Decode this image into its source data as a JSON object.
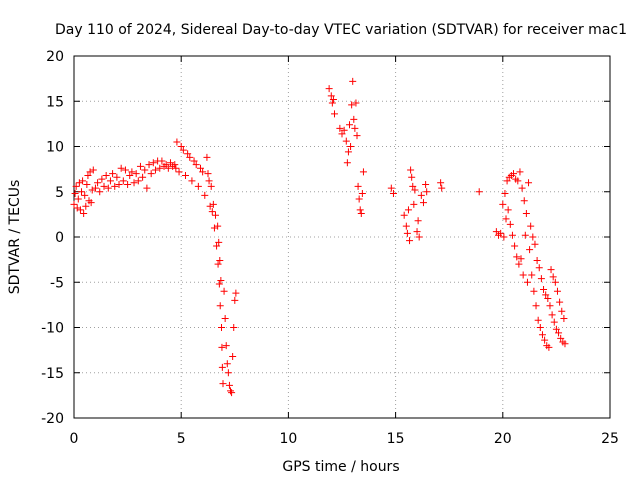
{
  "chart_data": {
    "type": "scatter",
    "title": "Day 110 of 2024, Sidereal Day-to-day VTEC variation (SDTVAR) for receiver mac1",
    "xlabel": "GPS time / hours",
    "ylabel": "SDTVAR / TECUs",
    "xlim": [
      0,
      25
    ],
    "ylim": [
      -20,
      20
    ],
    "xticks": [
      0,
      5,
      10,
      15,
      20,
      25
    ],
    "yticks": [
      -20,
      -15,
      -10,
      -5,
      0,
      5,
      10,
      15,
      20
    ],
    "xtick_labels": [
      "0",
      "5",
      "10",
      "15",
      "20",
      "25"
    ],
    "ytick_labels": [
      "-20",
      "-15",
      "-10",
      "-5",
      "0",
      "5",
      "10",
      "15",
      "20"
    ],
    "grid": true,
    "marker": "+",
    "series": [
      {
        "name": "mac1",
        "color": "#ff0000",
        "points": [
          [
            0.0,
            3.6
          ],
          [
            0.05,
            4.8
          ],
          [
            0.1,
            5.6
          ],
          [
            0.15,
            3.2
          ],
          [
            0.2,
            4.2
          ],
          [
            0.25,
            6.0
          ],
          [
            0.3,
            3.0
          ],
          [
            0.35,
            5.0
          ],
          [
            0.4,
            6.2
          ],
          [
            0.45,
            2.6
          ],
          [
            0.5,
            4.6
          ],
          [
            0.55,
            3.4
          ],
          [
            0.6,
            5.8
          ],
          [
            0.65,
            6.8
          ],
          [
            0.7,
            4.0
          ],
          [
            0.75,
            7.2
          ],
          [
            0.8,
            3.8
          ],
          [
            0.85,
            5.2
          ],
          [
            0.9,
            7.4
          ],
          [
            1.0,
            5.4
          ],
          [
            1.1,
            6.0
          ],
          [
            1.2,
            5.0
          ],
          [
            1.3,
            6.4
          ],
          [
            1.4,
            5.6
          ],
          [
            1.5,
            6.8
          ],
          [
            1.6,
            5.4
          ],
          [
            1.7,
            6.2
          ],
          [
            1.8,
            7.0
          ],
          [
            1.9,
            5.6
          ],
          [
            2.0,
            6.6
          ],
          [
            2.1,
            5.8
          ],
          [
            2.2,
            7.6
          ],
          [
            2.3,
            6.2
          ],
          [
            2.4,
            7.4
          ],
          [
            2.5,
            5.8
          ],
          [
            2.6,
            6.8
          ],
          [
            2.7,
            7.2
          ],
          [
            2.8,
            6.0
          ],
          [
            2.9,
            7.0
          ],
          [
            3.0,
            6.2
          ],
          [
            3.1,
            7.8
          ],
          [
            3.2,
            6.6
          ],
          [
            3.3,
            7.4
          ],
          [
            3.4,
            5.4
          ],
          [
            3.5,
            8.0
          ],
          [
            3.6,
            7.0
          ],
          [
            3.7,
            8.2
          ],
          [
            3.8,
            7.4
          ],
          [
            3.9,
            8.4
          ],
          [
            4.0,
            7.6
          ],
          [
            4.1,
            8.4
          ],
          [
            4.2,
            7.8
          ],
          [
            4.3,
            8.0
          ],
          [
            4.4,
            7.6
          ],
          [
            4.5,
            8.2
          ],
          [
            4.6,
            7.8
          ],
          [
            4.7,
            8.0
          ],
          [
            4.75,
            7.6
          ],
          [
            4.8,
            10.5
          ],
          [
            4.9,
            7.2
          ],
          [
            5.0,
            10.0
          ],
          [
            5.1,
            9.6
          ],
          [
            5.2,
            6.8
          ],
          [
            5.3,
            9.2
          ],
          [
            5.4,
            8.8
          ],
          [
            5.5,
            6.2
          ],
          [
            5.6,
            8.4
          ],
          [
            5.7,
            8.0
          ],
          [
            5.8,
            5.6
          ],
          [
            5.9,
            7.6
          ],
          [
            6.0,
            7.2
          ],
          [
            6.1,
            4.6
          ],
          [
            6.2,
            8.8
          ],
          [
            6.25,
            7.0
          ],
          [
            6.3,
            6.2
          ],
          [
            6.35,
            3.4
          ],
          [
            6.4,
            5.6
          ],
          [
            6.45,
            2.8
          ],
          [
            6.5,
            3.6
          ],
          [
            6.55,
            1.0
          ],
          [
            6.6,
            2.4
          ],
          [
            6.65,
            -1.0
          ],
          [
            6.7,
            1.2
          ],
          [
            6.72,
            -3.0
          ],
          [
            6.75,
            -0.6
          ],
          [
            6.78,
            -5.2
          ],
          [
            6.8,
            -2.6
          ],
          [
            6.82,
            -7.6
          ],
          [
            6.85,
            -4.8
          ],
          [
            6.88,
            -10.0
          ],
          [
            6.9,
            -12.2
          ],
          [
            6.92,
            -14.4
          ],
          [
            6.95,
            -16.2
          ],
          [
            7.0,
            -6.0
          ],
          [
            7.05,
            -9.0
          ],
          [
            7.1,
            -12.0
          ],
          [
            7.15,
            -14.0
          ],
          [
            7.2,
            -15.0
          ],
          [
            7.25,
            -16.4
          ],
          [
            7.3,
            -17.0
          ],
          [
            7.35,
            -17.2
          ],
          [
            7.4,
            -13.2
          ],
          [
            7.45,
            -10.0
          ],
          [
            7.5,
            -7.0
          ],
          [
            7.55,
            -6.2
          ],
          [
            11.9,
            16.4
          ],
          [
            12.0,
            15.6
          ],
          [
            12.05,
            14.8
          ],
          [
            12.1,
            15.2
          ],
          [
            12.15,
            13.6
          ],
          [
            12.4,
            12.0
          ],
          [
            12.5,
            11.4
          ],
          [
            12.6,
            11.8
          ],
          [
            12.7,
            10.6
          ],
          [
            12.75,
            8.2
          ],
          [
            12.8,
            9.4
          ],
          [
            12.85,
            12.4
          ],
          [
            12.9,
            10.0
          ],
          [
            12.95,
            14.6
          ],
          [
            13.0,
            17.2
          ],
          [
            13.05,
            13.0
          ],
          [
            13.1,
            12.0
          ],
          [
            13.15,
            14.8
          ],
          [
            13.2,
            11.2
          ],
          [
            13.25,
            5.6
          ],
          [
            13.3,
            4.2
          ],
          [
            13.35,
            3.0
          ],
          [
            13.4,
            2.6
          ],
          [
            13.45,
            4.8
          ],
          [
            13.5,
            7.2
          ],
          [
            14.8,
            5.4
          ],
          [
            14.9,
            4.8
          ],
          [
            15.4,
            2.4
          ],
          [
            15.5,
            1.2
          ],
          [
            15.55,
            0.4
          ],
          [
            15.6,
            3.0
          ],
          [
            15.65,
            -0.4
          ],
          [
            15.7,
            7.4
          ],
          [
            15.75,
            6.6
          ],
          [
            15.8,
            5.6
          ],
          [
            15.85,
            3.6
          ],
          [
            15.9,
            5.2
          ],
          [
            16.0,
            0.6
          ],
          [
            16.05,
            1.8
          ],
          [
            16.1,
            0.0
          ],
          [
            16.2,
            4.6
          ],
          [
            16.3,
            3.8
          ],
          [
            16.4,
            5.8
          ],
          [
            16.45,
            5.0
          ],
          [
            17.1,
            6.0
          ],
          [
            17.15,
            5.4
          ],
          [
            18.9,
            5.0
          ],
          [
            19.7,
            0.6
          ],
          [
            19.8,
            0.2
          ],
          [
            19.9,
            0.4
          ],
          [
            20.0,
            3.6
          ],
          [
            20.05,
            0.0
          ],
          [
            20.1,
            4.8
          ],
          [
            20.15,
            2.0
          ],
          [
            20.2,
            6.2
          ],
          [
            20.25,
            3.0
          ],
          [
            20.3,
            6.6
          ],
          [
            20.35,
            1.4
          ],
          [
            20.4,
            6.8
          ],
          [
            20.45,
            0.2
          ],
          [
            20.5,
            7.0
          ],
          [
            20.55,
            -1.0
          ],
          [
            20.6,
            6.4
          ],
          [
            20.65,
            -2.2
          ],
          [
            20.7,
            6.2
          ],
          [
            20.75,
            -3.0
          ],
          [
            20.8,
            7.2
          ],
          [
            20.85,
            -2.4
          ],
          [
            20.9,
            5.4
          ],
          [
            20.95,
            -4.2
          ],
          [
            21.0,
            4.0
          ],
          [
            21.05,
            0.2
          ],
          [
            21.1,
            2.6
          ],
          [
            21.15,
            -5.0
          ],
          [
            21.2,
            6.0
          ],
          [
            21.25,
            -1.4
          ],
          [
            21.3,
            1.2
          ],
          [
            21.35,
            -4.2
          ],
          [
            21.4,
            0.0
          ],
          [
            21.45,
            -6.0
          ],
          [
            21.5,
            -0.8
          ],
          [
            21.55,
            -7.6
          ],
          [
            21.6,
            -2.6
          ],
          [
            21.65,
            -9.2
          ],
          [
            21.7,
            -3.4
          ],
          [
            21.75,
            -10.0
          ],
          [
            21.8,
            -4.6
          ],
          [
            21.85,
            -10.8
          ],
          [
            21.9,
            -5.8
          ],
          [
            21.95,
            -11.4
          ],
          [
            22.0,
            -6.4
          ],
          [
            22.05,
            -12.0
          ],
          [
            22.1,
            -6.8
          ],
          [
            22.15,
            -12.2
          ],
          [
            22.2,
            -7.6
          ],
          [
            22.25,
            -3.6
          ],
          [
            22.3,
            -8.6
          ],
          [
            22.35,
            -4.4
          ],
          [
            22.4,
            -9.4
          ],
          [
            22.45,
            -5.0
          ],
          [
            22.5,
            -10.2
          ],
          [
            22.55,
            -6.0
          ],
          [
            22.6,
            -10.6
          ],
          [
            22.65,
            -7.2
          ],
          [
            22.7,
            -11.2
          ],
          [
            22.75,
            -8.2
          ],
          [
            22.8,
            -11.6
          ],
          [
            22.85,
            -9.0
          ],
          [
            22.9,
            -11.8
          ]
        ]
      }
    ]
  }
}
